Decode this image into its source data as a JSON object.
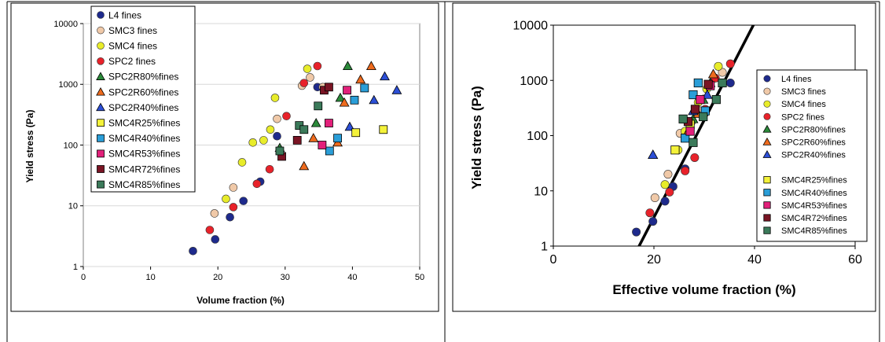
{
  "colors": {
    "L4": "#1e2a8c",
    "SMC3": "#f0c9a8",
    "SMC4": "#e8ec2a",
    "SPC2": "#e8222a",
    "SPC2R80": "#2b8a3a",
    "SPC2R60": "#ee6b1e",
    "SPC2R40": "#2c4fd6",
    "SMC4R25": "#f4f23a",
    "SMC4R40": "#2a9ed8",
    "SMC4R53": "#e2207a",
    "SMC4R72": "#7a1424",
    "SMC4R85": "#3b7a5a"
  },
  "chart_data": [
    {
      "type": "scatter",
      "title": "",
      "xlabel": "Volume fraction (%)",
      "ylabel": "Yield stress (Pa)",
      "xlim": [
        0,
        50
      ],
      "ylim": [
        1,
        10000
      ],
      "yscale": "log",
      "x_ticks": [
        "0",
        "10",
        "20",
        "30",
        "40",
        "50"
      ],
      "y_ticks": [
        "1",
        "10",
        "100",
        "1000",
        "10000"
      ],
      "legend_position": "top-left",
      "series": [
        {
          "name": "L4 fines",
          "marker": "circle",
          "color_key": "L4",
          "x": [
            16.3,
            19.6,
            21.8,
            23.8,
            26.3,
            28.8,
            34.8
          ],
          "y": [
            1.8,
            2.8,
            6.5,
            12,
            25,
            140,
            900
          ]
        },
        {
          "name": "SMC3 fines",
          "marker": "circle",
          "color_key": "SMC3",
          "x": [
            19.5,
            22.3,
            28.8,
            32.5,
            33.7,
            35.6
          ],
          "y": [
            7.5,
            20,
            270,
            950,
            1300,
            900
          ]
        },
        {
          "name": "SMC4 fines",
          "marker": "circle",
          "color_key": "SMC4",
          "x": [
            21.2,
            23.6,
            25.2,
            26.8,
            27.8,
            28.5,
            33.3
          ],
          "y": [
            13,
            52,
            110,
            120,
            180,
            600,
            1800
          ]
        },
        {
          "name": "SPC2 fines",
          "marker": "circle",
          "color_key": "SPC2",
          "x": [
            18.8,
            22.3,
            25.8,
            27.7,
            30.2,
            32.8,
            34.8
          ],
          "y": [
            4,
            9.5,
            23,
            40,
            300,
            1050,
            2000
          ]
        },
        {
          "name": "SPC2R80%fines",
          "marker": "triangle-up",
          "color_key": "SPC2R80",
          "x": [
            29.2,
            34.6,
            38.2,
            39.3
          ],
          "y": [
            90,
            230,
            600,
            2000
          ]
        },
        {
          "name": "SPC2R60%fines",
          "marker": "triangle-up",
          "color_key": "SPC2R60",
          "x": [
            32.8,
            34.2,
            37.8,
            38.8,
            41.2,
            42.8
          ],
          "y": [
            45,
            130,
            110,
            500,
            1200,
            2000
          ]
        },
        {
          "name": "SPC2R40%fines",
          "marker": "triangle-up",
          "color_key": "SPC2R40",
          "x": [
            39.6,
            43.2,
            44.8,
            46.6
          ],
          "y": [
            200,
            550,
            1350,
            800
          ]
        },
        {
          "name": "SMC4R25%fines",
          "marker": "square",
          "color_key": "SMC4R25",
          "x": [
            40.5,
            44.6
          ],
          "y": [
            160,
            180
          ]
        },
        {
          "name": "SMC4R40%fines",
          "marker": "square",
          "color_key": "SMC4R40",
          "x": [
            36.6,
            37.8,
            40.3,
            41.8
          ],
          "y": [
            80,
            130,
            550,
            870
          ]
        },
        {
          "name": "SMC4R53%fines",
          "marker": "square",
          "color_key": "SMC4R53",
          "x": [
            35.5,
            36.5,
            39.2
          ],
          "y": [
            100,
            230,
            800
          ]
        },
        {
          "name": "SMC4R72%fines",
          "marker": "square",
          "color_key": "SMC4R72",
          "x": [
            29.5,
            31.8,
            35.8,
            36.5
          ],
          "y": [
            65,
            120,
            800,
            900
          ]
        },
        {
          "name": "SMC4R85%fines",
          "marker": "square",
          "color_key": "SMC4R85",
          "x": [
            29.2,
            32.1,
            32.8,
            34.9
          ],
          "y": [
            80,
            210,
            180,
            440
          ]
        }
      ]
    },
    {
      "type": "scatter",
      "title": "",
      "xlabel": "Effective volume fraction (%)",
      "ylabel": "Yield stress (Pa)",
      "xlim": [
        0,
        60
      ],
      "ylim": [
        1,
        10000
      ],
      "yscale": "log",
      "x_ticks": [
        "0",
        "20",
        "40",
        "60"
      ],
      "y_ticks": [
        "1",
        "10",
        "100",
        "1000",
        "10000"
      ],
      "legend_position": "right",
      "fit_line": {
        "x": [
          16.5,
          40
        ],
        "y": [
          0.8,
          11000
        ]
      },
      "series": [
        {
          "name": "L4 fines",
          "marker": "circle",
          "color_key": "L4",
          "x": [
            16.5,
            19.8,
            22.2,
            23.8,
            26.2,
            35.2
          ],
          "y": [
            1.8,
            2.8,
            6.5,
            12,
            25,
            900
          ]
        },
        {
          "name": "SMC3 fines",
          "marker": "circle",
          "color_key": "SMC3",
          "x": [
            20.2,
            22.8,
            25.2,
            29.2,
            33.6
          ],
          "y": [
            7.5,
            20,
            110,
            280,
            1400
          ]
        },
        {
          "name": "SMC4 fines",
          "marker": "circle",
          "color_key": "SMC4",
          "x": [
            22.2,
            24.8,
            26.2,
            27.5,
            28.8,
            30.5,
            32.8
          ],
          "y": [
            13,
            55,
            120,
            180,
            400,
            700,
            1800
          ]
        },
        {
          "name": "SPC2 fines",
          "marker": "circle",
          "color_key": "SPC2",
          "x": [
            19.2,
            23.1,
            26.2,
            28.1,
            30.2,
            32.2,
            35.2
          ],
          "y": [
            4,
            9.5,
            23,
            40,
            300,
            1100,
            2000
          ]
        },
        {
          "name": "SPC2R80%fines",
          "marker": "triangle-up",
          "color_key": "SPC2R80",
          "x": [
            27.8,
            29.8,
            31.2
          ],
          "y": [
            200,
            450,
            900
          ]
        },
        {
          "name": "SPC2R60%fines",
          "marker": "triangle-up",
          "color_key": "SPC2R60",
          "x": [
            26.8,
            28.8,
            31.8
          ],
          "y": [
            120,
            250,
            1300
          ]
        },
        {
          "name": "SPC2R40%fines",
          "marker": "triangle-up",
          "color_key": "SPC2R40",
          "x": [
            19.8,
            27.8,
            30.6
          ],
          "y": [
            45,
            280,
            550
          ]
        },
        {
          "name": "SMC4R25%fines",
          "marker": "square",
          "color_key": "SMC4R25",
          "x": [
            24.2,
            27.2
          ],
          "y": [
            55,
            160
          ]
        },
        {
          "name": "SMC4R40%fines",
          "marker": "square",
          "color_key": "SMC4R40",
          "x": [
            26.2,
            27.8,
            28.8,
            30.2
          ],
          "y": [
            90,
            550,
            900,
            280
          ]
        },
        {
          "name": "SMC4R53%fines",
          "marker": "square",
          "color_key": "SMC4R53",
          "x": [
            27.2,
            29.2,
            31.2
          ],
          "y": [
            120,
            450,
            800
          ]
        },
        {
          "name": "SMC4R72%fines",
          "marker": "square",
          "color_key": "SMC4R72",
          "x": [
            26.8,
            28.2,
            30.8
          ],
          "y": [
            180,
            300,
            850
          ]
        },
        {
          "name": "SMC4R85%fines",
          "marker": "square",
          "color_key": "SMC4R85",
          "x": [
            27.8,
            29.8,
            32.4,
            33.6,
            25.8
          ],
          "y": [
            75,
            220,
            450,
            900,
            200
          ]
        }
      ]
    }
  ]
}
